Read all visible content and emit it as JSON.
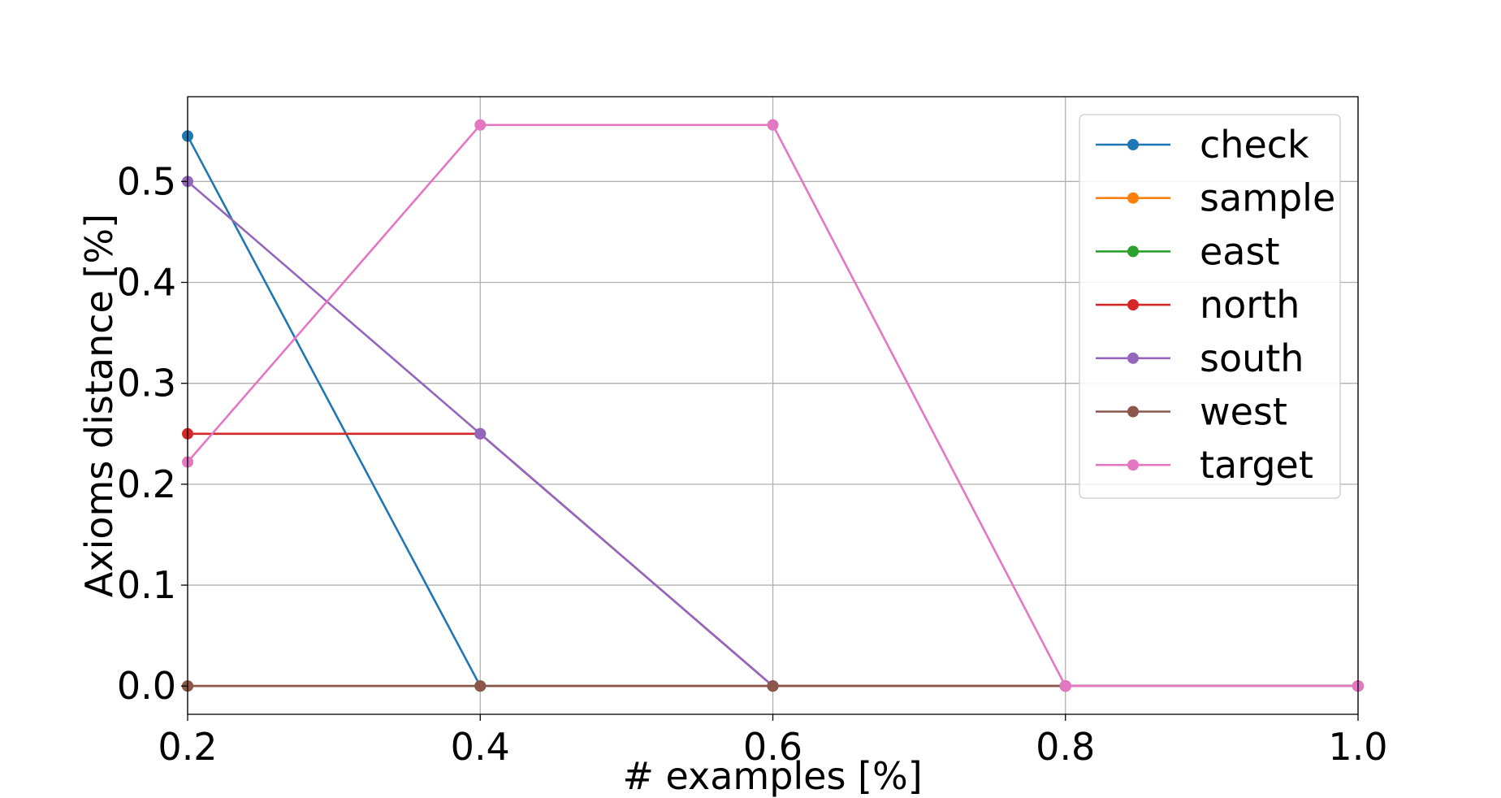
{
  "chart_data": {
    "type": "line",
    "x": [
      0.2,
      0.4,
      0.6,
      0.8,
      1.0
    ],
    "series": [
      {
        "name": "check",
        "color": "#1f77b4",
        "values": [
          0.545,
          0.0,
          0.0,
          0.0,
          0.0
        ]
      },
      {
        "name": "sample",
        "color": "#ff7f0e",
        "values": [
          0.0,
          0.0,
          0.0,
          0.0,
          0.0
        ]
      },
      {
        "name": "east",
        "color": "#2ca02c",
        "values": [
          0.0,
          0.0,
          0.0,
          0.0,
          0.0
        ]
      },
      {
        "name": "north",
        "color": "#d62728",
        "values": [
          0.25,
          0.25,
          0.0,
          0.0,
          0.0
        ]
      },
      {
        "name": "south",
        "color": "#9467bd",
        "values": [
          0.5,
          0.25,
          0.0,
          0.0,
          0.0
        ]
      },
      {
        "name": "west",
        "color": "#8c564b",
        "values": [
          0.0,
          0.0,
          0.0,
          0.0,
          0.0
        ]
      },
      {
        "name": "target",
        "color": "#e377c2",
        "values": [
          0.222,
          0.556,
          0.556,
          0.0,
          0.0
        ]
      }
    ],
    "xlabel": "# examples [%]",
    "ylabel": "Axioms distance [%]",
    "xlim": [
      0.2,
      1.0
    ],
    "ylim": [
      -0.028,
      0.584
    ],
    "xticks": [
      "0.2",
      "0.4",
      "0.6",
      "0.8",
      "1.0"
    ],
    "yticks": [
      "0.0",
      "0.1",
      "0.2",
      "0.3",
      "0.4",
      "0.5"
    ],
    "grid": true,
    "legend_position": "top-right"
  }
}
